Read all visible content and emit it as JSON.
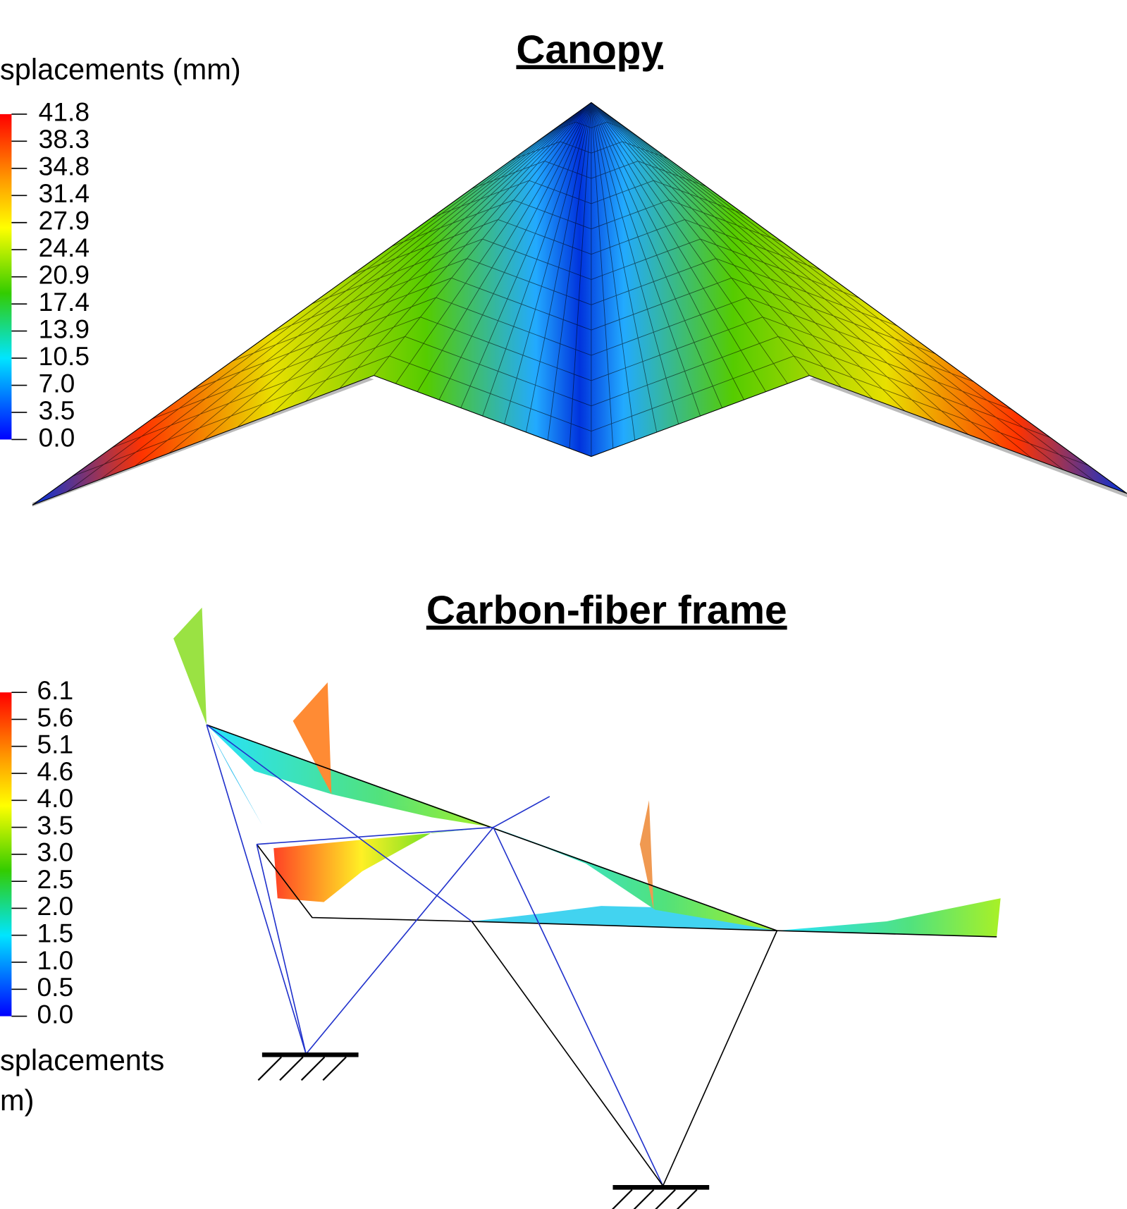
{
  "canopy": {
    "title": "Canopy",
    "colorbar": {
      "title": "splacements (mm)",
      "ticks": [
        "41.8",
        "38.3",
        "34.8",
        "31.4",
        "27.9",
        "24.4",
        "20.9",
        "17.4",
        "13.9",
        "10.5",
        "7.0",
        "3.5",
        "0.0"
      ]
    }
  },
  "frame": {
    "title": "Carbon-fiber frame",
    "colorbar": {
      "title_lines": [
        "splacements",
        "m)"
      ],
      "ticks": [
        "6.1",
        "5.6",
        "5.1",
        "4.6",
        "4.0",
        "3.5",
        "3.0",
        "2.5",
        "2.0",
        "1.5",
        "1.0",
        "0.5",
        "0.0"
      ]
    }
  }
}
